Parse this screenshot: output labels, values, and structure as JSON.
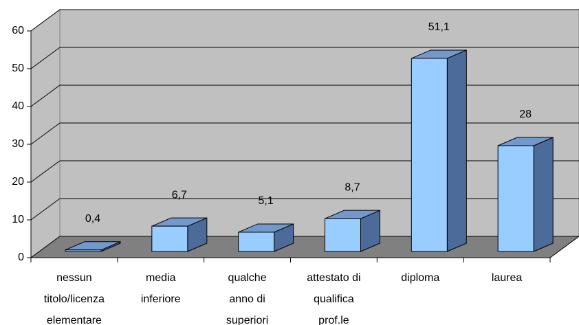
{
  "chart_data": {
    "type": "bar3d",
    "categories": [
      [
        "nessun",
        "titolo/licenza",
        "elementare"
      ],
      [
        "media",
        "inferiore"
      ],
      [
        "qualche",
        "anno di",
        "superiori"
      ],
      [
        "attestato di",
        "qualifica",
        "prof.le"
      ],
      [
        "diploma"
      ],
      [
        "laurea"
      ]
    ],
    "values": [
      0.4,
      6.7,
      5.1,
      8.7,
      51.1,
      28
    ],
    "value_labels": [
      "0,4",
      "6,7",
      "5,1",
      "8,7",
      "51,1",
      "28"
    ],
    "color": "#99ccff",
    "ylim": [
      0,
      60
    ],
    "yticks": [
      0,
      10,
      20,
      30,
      40,
      50,
      60
    ],
    "grid": true
  }
}
